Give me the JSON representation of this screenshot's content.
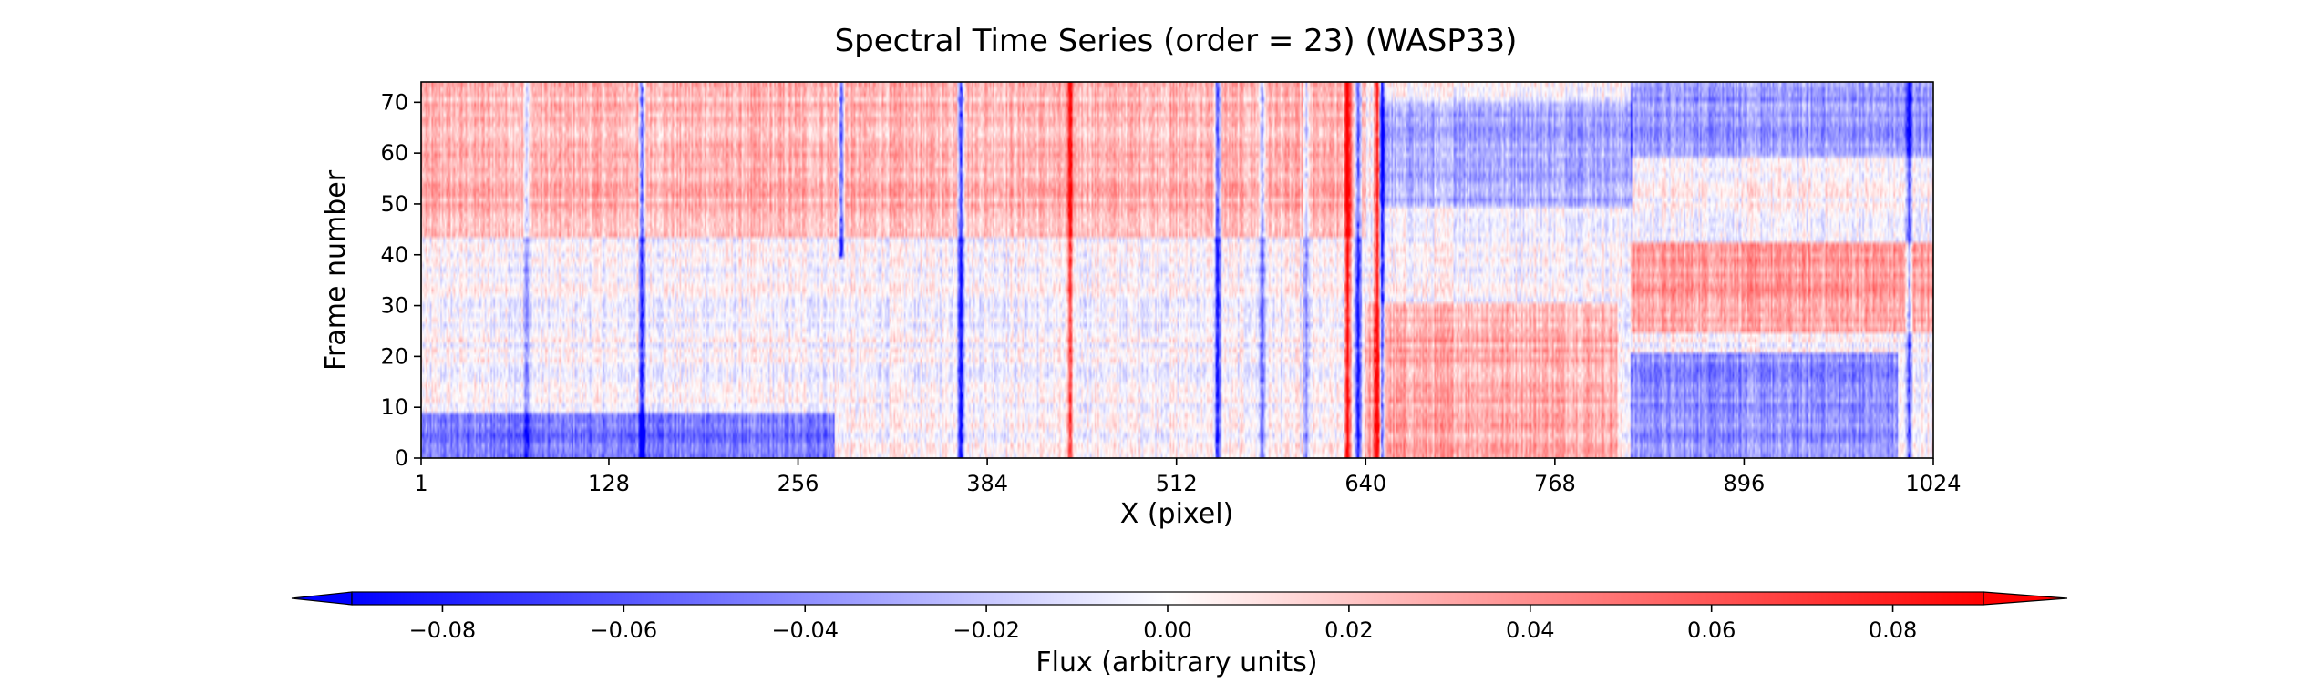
{
  "chart_data": [
    {
      "type": "heatmap",
      "title": "Spectral Time Series (order = 23) (WASP33)",
      "xlabel": "X (pixel)",
      "ylabel": "Frame number",
      "xlim": [
        1,
        1024
      ],
      "ylim": [
        0,
        74
      ],
      "x_ticks": [
        1,
        128,
        256,
        384,
        512,
        640,
        768,
        896,
        1024
      ],
      "x_tick_labels": [
        "1",
        "128",
        "256",
        "384",
        "512",
        "640",
        "768",
        "896",
        "1024"
      ],
      "y_ticks": [
        0,
        10,
        20,
        30,
        40,
        50,
        60,
        70
      ],
      "y_tick_labels": [
        "0",
        "10",
        "20",
        "30",
        "40",
        "50",
        "60",
        "70"
      ],
      "rows": 75,
      "columns": 1024,
      "colormap": "bwr",
      "colors": {
        "negative": "#0000ff",
        "zero": "#ffffff",
        "positive": "#ff0000"
      },
      "value_range": [
        -0.09,
        0.09
      ],
      "line_features": [
        {
          "x": 72,
          "sign": -1,
          "amp": 0.05,
          "frames": [
            0,
            74
          ]
        },
        {
          "x": 150,
          "sign": -1,
          "amp": 0.09,
          "frames": [
            0,
            74
          ]
        },
        {
          "x": 285,
          "sign": -1,
          "amp": 0.08,
          "frames": [
            40,
            74
          ]
        },
        {
          "x": 366,
          "sign": -1,
          "amp": 0.09,
          "frames": [
            0,
            74
          ]
        },
        {
          "x": 440,
          "sign": 1,
          "amp": 0.06,
          "frames": [
            0,
            74
          ]
        },
        {
          "x": 540,
          "sign": -1,
          "amp": 0.09,
          "frames": [
            0,
            74
          ]
        },
        {
          "x": 570,
          "sign": -1,
          "amp": 0.06,
          "frames": [
            0,
            74
          ]
        },
        {
          "x": 600,
          "sign": -1,
          "amp": 0.05,
          "frames": [
            0,
            74
          ]
        },
        {
          "x": 628,
          "sign": 1,
          "amp": 0.09,
          "frames": [
            0,
            74
          ]
        },
        {
          "x": 635,
          "sign": -1,
          "amp": 0.09,
          "frames": [
            0,
            74
          ]
        },
        {
          "x": 648,
          "sign": 1,
          "amp": 0.09,
          "frames": [
            0,
            74
          ]
        },
        {
          "x": 651,
          "sign": -1,
          "amp": 0.09,
          "frames": [
            0,
            74
          ]
        },
        {
          "x": 1008,
          "sign": -1,
          "amp": 0.07,
          "frames": [
            0,
            74
          ]
        }
      ],
      "regions": [
        {
          "x": [
            1,
            280
          ],
          "frames": [
            0,
            8
          ],
          "value": -0.05
        },
        {
          "x": [
            1,
            640
          ],
          "frames": [
            44,
            74
          ],
          "value": 0.025
        },
        {
          "x": [
            640,
            810
          ],
          "frames": [
            0,
            30
          ],
          "value": 0.03
        },
        {
          "x": [
            650,
            820
          ],
          "frames": [
            50,
            70
          ],
          "value": -0.03
        },
        {
          "x": [
            820,
            1000
          ],
          "frames": [
            0,
            20
          ],
          "value": -0.04
        },
        {
          "x": [
            820,
            1024
          ],
          "frames": [
            25,
            42
          ],
          "value": 0.035
        },
        {
          "x": [
            820,
            1024
          ],
          "frames": [
            60,
            74
          ],
          "value": -0.035
        }
      ]
    },
    {
      "type": "colorbar",
      "label": "Flux (arbitrary units)",
      "ticks": [
        -0.08,
        -0.06,
        -0.04,
        -0.02,
        0.0,
        0.02,
        0.04,
        0.06,
        0.08
      ],
      "tick_labels": [
        "−0.08",
        "−0.06",
        "−0.04",
        "−0.02",
        "0.00",
        "0.02",
        "0.04",
        "0.06",
        "0.08"
      ],
      "range": [
        -0.09,
        0.09
      ],
      "extend": "both"
    }
  ]
}
